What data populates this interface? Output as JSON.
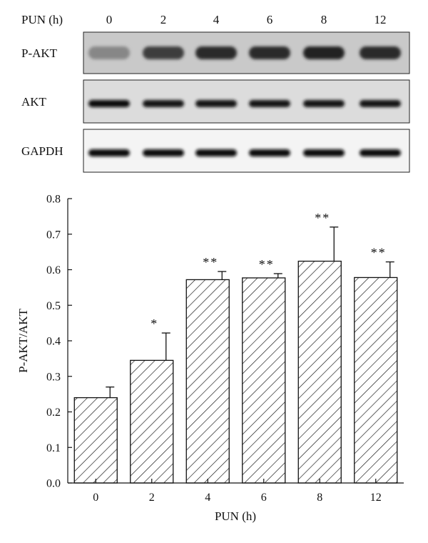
{
  "blot": {
    "header_label": "PUN (h)",
    "lanes": [
      "0",
      "2",
      "4",
      "6",
      "8",
      "12"
    ],
    "rows": [
      {
        "label": "P-AKT",
        "intensity": [
          0.35,
          0.75,
          0.85,
          0.85,
          0.9,
          0.85
        ]
      },
      {
        "label": "AKT",
        "intensity": [
          1.0,
          0.95,
          0.95,
          0.95,
          0.95,
          0.95
        ]
      },
      {
        "label": "GAPDH",
        "intensity": [
          1.0,
          1.0,
          1.0,
          1.0,
          1.0,
          1.0
        ]
      }
    ]
  },
  "chart_data": {
    "type": "bar",
    "categories": [
      "0",
      "2",
      "4",
      "6",
      "8",
      "12"
    ],
    "values": [
      0.24,
      0.345,
      0.572,
      0.577,
      0.624,
      0.578
    ],
    "errors": [
      0.03,
      0.077,
      0.023,
      0.012,
      0.096,
      0.044
    ],
    "significance": [
      "",
      "*",
      "**",
      "**",
      "**",
      "**"
    ],
    "xlabel": "PUN (h)",
    "ylabel": "P-AKT/AKT",
    "ylim": [
      0,
      0.8
    ],
    "yticks": [
      "0.0",
      "0.1",
      "0.2",
      "0.3",
      "0.4",
      "0.5",
      "0.6",
      "0.7",
      "0.8"
    ],
    "bar_fill": "hatched",
    "grid": false
  }
}
